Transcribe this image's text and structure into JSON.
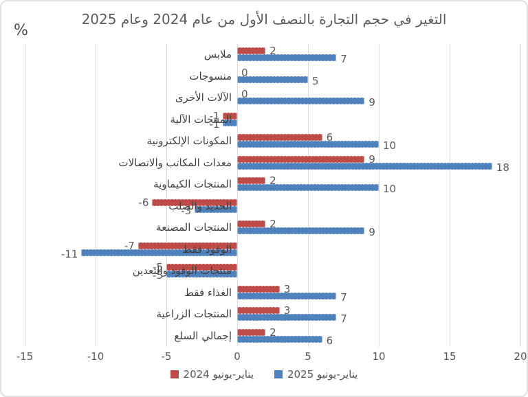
{
  "title": "التغير في حجم التجارة بالنصف الأول من عام 2024 وعام 2025",
  "unit_label": "%",
  "chart_data": {
    "type": "bar",
    "orientation": "horizontal",
    "title": "التغير في حجم التجارة بالنصف الأول من عام 2024 وعام 2025",
    "ylabel": "%",
    "xlabel": "",
    "categories": [
      "ملابس",
      "منسوجات",
      "الآلات الأخرى",
      "المنتجات الآلية",
      "المكونات الإلكترونية",
      "معدات المكاتب والاتصالات",
      "المنتجات الكيماوية",
      "الحديد والصلب",
      "المنتجات المصنعة",
      "الوقود فقط",
      "منتجات الوقود والتعدين",
      "الغذاء فقط",
      "المنتجات الزراعية",
      "إجمالي السلع"
    ],
    "series": [
      {
        "name": "يناير-يونيو 2024",
        "color": "#be4b48",
        "values": [
          2,
          0,
          0,
          -1,
          6,
          9,
          2,
          -6,
          2,
          -7,
          -5,
          3,
          3,
          2
        ]
      },
      {
        "name": "يناير-يونيو 2025",
        "color": "#4f81bd",
        "values": [
          7,
          5,
          9,
          -1,
          10,
          18,
          10,
          -3,
          9,
          -11,
          -5,
          7,
          7,
          6
        ]
      }
    ],
    "xlim": [
      -15,
      20
    ],
    "xticks": [
      -15,
      -10,
      -5,
      0,
      5,
      10,
      15,
      20
    ],
    "grid": true,
    "gridline_color": "#d9d9d9",
    "label_color": "#595959",
    "legend_position": "bottom"
  }
}
